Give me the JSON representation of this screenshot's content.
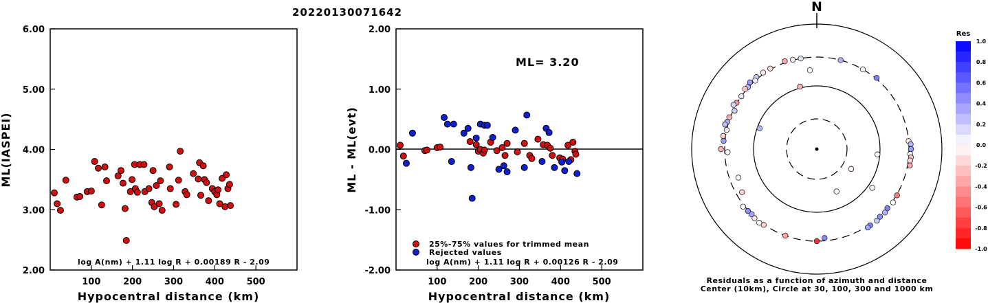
{
  "page_title": "20220130071642",
  "chart_data": [
    {
      "type": "scatter",
      "id": "ml-vs-distance",
      "xlabel": "Hypocentral distance (km)",
      "ylabel": "ML(IASPEI)",
      "xlim": [
        0,
        600
      ],
      "ylim": [
        2.0,
        6.0
      ],
      "xticks": [
        "100",
        "200",
        "300",
        "400",
        "500"
      ],
      "yticks": [
        "2.00",
        "3.00",
        "4.00",
        "5.00",
        "6.00"
      ],
      "formula": "log A(nm) + 1.11 log R + 0.00189 R - 2.09",
      "marker_color": "#d01010",
      "points": [
        [
          10,
          3.28
        ],
        [
          17,
          3.1
        ],
        [
          25,
          2.99
        ],
        [
          38,
          3.49
        ],
        [
          65,
          3.21
        ],
        [
          72,
          3.22
        ],
        [
          90,
          3.3
        ],
        [
          100,
          3.31
        ],
        [
          108,
          3.8
        ],
        [
          117,
          3.69
        ],
        [
          125,
          3.08
        ],
        [
          133,
          3.71
        ],
        [
          137,
          3.48
        ],
        [
          165,
          3.56
        ],
        [
          172,
          3.65
        ],
        [
          177,
          3.44
        ],
        [
          182,
          3.02
        ],
        [
          185,
          2.49
        ],
        [
          195,
          3.3
        ],
        [
          199,
          3.5
        ],
        [
          205,
          3.75
        ],
        [
          207,
          3.35
        ],
        [
          212,
          3.29
        ],
        [
          218,
          3.75
        ],
        [
          228,
          3.75
        ],
        [
          230,
          3.3
        ],
        [
          240,
          3.35
        ],
        [
          247,
          3.12
        ],
        [
          250,
          3.65
        ],
        [
          253,
          3.05
        ],
        [
          258,
          3.4
        ],
        [
          265,
          3.1
        ],
        [
          268,
          3.48
        ],
        [
          272,
          2.99
        ],
        [
          290,
          3.71
        ],
        [
          292,
          3.35
        ],
        [
          306,
          3.09
        ],
        [
          312,
          3.49
        ],
        [
          316,
          3.97
        ],
        [
          328,
          3.3
        ],
        [
          332,
          3.25
        ],
        [
          348,
          3.6
        ],
        [
          360,
          3.51
        ],
        [
          363,
          3.78
        ],
        [
          366,
          3.24
        ],
        [
          372,
          3.73
        ],
        [
          375,
          3.5
        ],
        [
          380,
          3.45
        ],
        [
          385,
          3.15
        ],
        [
          394,
          3.35
        ],
        [
          400,
          3.3
        ],
        [
          405,
          3.25
        ],
        [
          408,
          3.33
        ],
        [
          412,
          3.1
        ],
        [
          418,
          3.52
        ],
        [
          425,
          3.05
        ],
        [
          428,
          3.58
        ],
        [
          432,
          3.35
        ],
        [
          436,
          3.42
        ],
        [
          438,
          3.07
        ]
      ]
    },
    {
      "type": "scatter",
      "id": "residual-vs-distance",
      "xlabel": "Hypocentral distance (km)",
      "ylabel": "ML - ML(evt)",
      "xlim": [
        0,
        600
      ],
      "ylim": [
        -2.0,
        2.0
      ],
      "xticks": [
        "100",
        "200",
        "300",
        "400",
        "500"
      ],
      "yticks": [
        "-2.00",
        "-1.00",
        "0.00",
        "1.00",
        "2.00"
      ],
      "ml_label": "ML= 3.20",
      "formula": "log A(nm) + 1.11 log R + 0.00126 R - 2.09",
      "legend": [
        "25%-75% values for trimmed mean",
        "Rejected values"
      ],
      "legend_position": "bottom-left",
      "series": [
        {
          "name": "25%-75% values for trimmed mean",
          "color": "#d01010",
          "points": [
            [
              10,
              0.07
            ],
            [
              18,
              -0.11
            ],
            [
              70,
              -0.02
            ],
            [
              75,
              -0.01
            ],
            [
              100,
              0.03
            ],
            [
              107,
              0.04
            ],
            [
              180,
              0.13
            ],
            [
              195,
              0.08
            ],
            [
              200,
              -0.03
            ],
            [
              205,
              0.0
            ],
            [
              212,
              -0.06
            ],
            [
              215,
              -0.01
            ],
            [
              230,
              0.12
            ],
            [
              245,
              -0.02
            ],
            [
              258,
              0.03
            ],
            [
              265,
              -0.1
            ],
            [
              270,
              0.1
            ],
            [
              295,
              -0.04
            ],
            [
              312,
              0.1
            ],
            [
              325,
              -0.1
            ],
            [
              330,
              -0.15
            ],
            [
              345,
              0.17
            ],
            [
              358,
              0.08
            ],
            [
              368,
              0.07
            ],
            [
              375,
              0.02
            ],
            [
              380,
              -0.1
            ],
            [
              398,
              -0.14
            ],
            [
              405,
              -0.16
            ],
            [
              418,
              0.07
            ],
            [
              425,
              -0.17
            ],
            [
              430,
              0.12
            ],
            [
              435,
              -0.03
            ],
            [
              437,
              -0.08
            ]
          ]
        },
        {
          "name": "Rejected values",
          "color": "#1020d0",
          "points": [
            [
              25,
              -0.23
            ],
            [
              40,
              0.27
            ],
            [
              117,
              0.53
            ],
            [
              125,
              0.42
            ],
            [
              135,
              -0.2
            ],
            [
              140,
              0.42
            ],
            [
              165,
              0.27
            ],
            [
              175,
              0.35
            ],
            [
              182,
              -0.3
            ],
            [
              185,
              -0.81
            ],
            [
              195,
              0.19
            ],
            [
              205,
              0.42
            ],
            [
              215,
              0.4
            ],
            [
              222,
              0.4
            ],
            [
              235,
              0.2
            ],
            [
              250,
              -0.33
            ],
            [
              262,
              -0.27
            ],
            [
              270,
              -0.37
            ],
            [
              290,
              0.32
            ],
            [
              312,
              -0.3
            ],
            [
              318,
              0.57
            ],
            [
              355,
              -0.2
            ],
            [
              365,
              0.35
            ],
            [
              372,
              0.28
            ],
            [
              385,
              -0.3
            ],
            [
              403,
              -0.21
            ],
            [
              410,
              -0.35
            ],
            [
              420,
              -0.2
            ],
            [
              440,
              -0.4
            ]
          ]
        }
      ]
    },
    {
      "type": "scatter",
      "id": "azimuth-residual-map",
      "north_label": "N",
      "caption_line1": "Residuals as a function of azimuth and distance",
      "caption_line2": "Center (10km), Circle at 30, 100, 300 and 1000 km",
      "colorbar_title": "Res",
      "colorbar_ticks": [
        "1.0",
        "0.8",
        "0.6",
        "0.4",
        "0.2",
        "0.0",
        "-0.2",
        "-0.4",
        "-0.6",
        "-0.8",
        "-1.0"
      ],
      "colorbar_range": [
        -1.0,
        1.0
      ],
      "circles_km": [
        30,
        100,
        300,
        1000
      ],
      "circles_dashed": [
        true,
        false,
        true,
        false
      ],
      "stations": [
        {
          "az": 330,
          "r": 320,
          "res": -0.15
        },
        {
          "az": 325,
          "r": 330,
          "res": -0.1
        },
        {
          "az": 320,
          "r": 340,
          "res": 0.2
        },
        {
          "az": 318,
          "r": 300,
          "res": 0.05
        },
        {
          "az": 315,
          "r": 350,
          "res": 0.4
        },
        {
          "az": 312,
          "r": 310,
          "res": 0.3
        },
        {
          "az": 310,
          "r": 330,
          "res": -0.2
        },
        {
          "az": 305,
          "r": 300,
          "res": 0.1
        },
        {
          "az": 300,
          "r": 310,
          "res": -0.4
        },
        {
          "az": 298,
          "r": 345,
          "res": 0.15
        },
        {
          "az": 295,
          "r": 290,
          "res": 0.2
        },
        {
          "az": 290,
          "r": 320,
          "res": -0.3
        },
        {
          "az": 287,
          "r": 330,
          "res": 0.3
        },
        {
          "az": 285,
          "r": 360,
          "res": 0.25
        },
        {
          "az": 282,
          "r": 300,
          "res": -0.1
        },
        {
          "az": 278,
          "r": 350,
          "res": -0.2
        },
        {
          "az": 275,
          "r": 330,
          "res": 0.4
        },
        {
          "az": 270,
          "r": 380,
          "res": -0.3
        },
        {
          "az": 268,
          "r": 280,
          "res": 0.0
        },
        {
          "az": 340,
          "r": 330,
          "res": -0.35
        },
        {
          "az": 345,
          "r": 310,
          "res": -0.05
        },
        {
          "az": 350,
          "r": 300,
          "res": 0.1
        },
        {
          "az": 15,
          "r": 300,
          "res": 0.3
        },
        {
          "az": 30,
          "r": 300,
          "res": 0.0
        },
        {
          "az": 40,
          "r": 320,
          "res": 0.5
        },
        {
          "az": 355,
          "r": 210,
          "res": 0.0
        },
        {
          "az": 85,
          "r": 300,
          "res": -0.1
        },
        {
          "az": 87,
          "r": 340,
          "res": 0.3
        },
        {
          "az": 90,
          "r": 345,
          "res": 0.4
        },
        {
          "az": 93,
          "r": 330,
          "res": 0.0
        },
        {
          "az": 95,
          "r": 350,
          "res": -0.25
        },
        {
          "az": 97,
          "r": 340,
          "res": -0.15
        },
        {
          "az": 100,
          "r": 350,
          "res": -0.35
        },
        {
          "az": 120,
          "r": 310,
          "res": -0.5
        },
        {
          "az": 125,
          "r": 320,
          "res": 0.0
        },
        {
          "az": 130,
          "r": 300,
          "res": 0.5
        },
        {
          "az": 133,
          "r": 320,
          "res": 0.3
        },
        {
          "az": 137,
          "r": 310,
          "res": 0.45
        },
        {
          "az": 140,
          "r": 330,
          "res": 0.2
        },
        {
          "az": 145,
          "r": 320,
          "res": 0.5
        },
        {
          "az": 147,
          "r": 330,
          "res": 0.35
        },
        {
          "az": 175,
          "r": 280,
          "res": 0.45
        },
        {
          "az": 180,
          "r": 300,
          "res": -0.8
        },
        {
          "az": 200,
          "r": 300,
          "res": -0.35
        },
        {
          "az": 215,
          "r": 310,
          "res": -0.2
        },
        {
          "az": 218,
          "r": 330,
          "res": 0.0
        },
        {
          "az": 222,
          "r": 320,
          "res": -0.1
        },
        {
          "az": 225,
          "r": 300,
          "res": 0.35
        },
        {
          "az": 228,
          "r": 310,
          "res": 0.45
        },
        {
          "az": 232,
          "r": 330,
          "res": 0.0
        },
        {
          "az": 240,
          "r": 260,
          "res": -0.2
        },
        {
          "az": 250,
          "r": 240,
          "res": 0.0
        },
        {
          "az": 345,
          "r": 110,
          "res": -0.3
        },
        {
          "az": 290,
          "r": 95,
          "res": 0.3
        },
        {
          "az": 95,
          "r": 95,
          "res": 0.0
        },
        {
          "az": 125,
          "r": 130,
          "res": 0.0
        },
        {
          "az": 155,
          "r": 65,
          "res": 0.0
        },
        {
          "az": 120,
          "r": 50,
          "res": -0.05
        }
      ]
    }
  ]
}
